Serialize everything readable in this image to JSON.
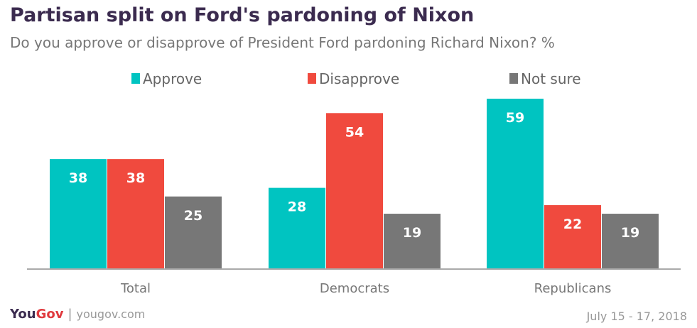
{
  "header": {
    "title": "Partisan split on Ford's pardoning of Nixon",
    "subtitle": "Do you approve or disapprove of President Ford pardoning Richard Nixon? %"
  },
  "footer": {
    "brand_you": "You",
    "brand_gov": "Gov",
    "separator": "|",
    "url": "yougov.com",
    "date": "July 15 - 17, 2018"
  },
  "colors": {
    "approve": "#00c4c1",
    "disapprove": "#f04a3e",
    "not_sure": "#777777",
    "title": "#3b2b4f"
  },
  "chart_data": {
    "type": "bar",
    "categories": [
      "Total",
      "Democrats",
      "Republicans"
    ],
    "series": [
      {
        "name": "Approve",
        "values": [
          38,
          28,
          59
        ],
        "color": "#00c4c1"
      },
      {
        "name": "Disapprove",
        "values": [
          38,
          54,
          22
        ],
        "color": "#f04a3e"
      },
      {
        "name": "Not sure",
        "values": [
          25,
          19,
          19
        ],
        "color": "#777777"
      }
    ],
    "ylim": [
      0,
      60
    ],
    "grid": false,
    "legend": "top-center",
    "data_labels": true
  }
}
